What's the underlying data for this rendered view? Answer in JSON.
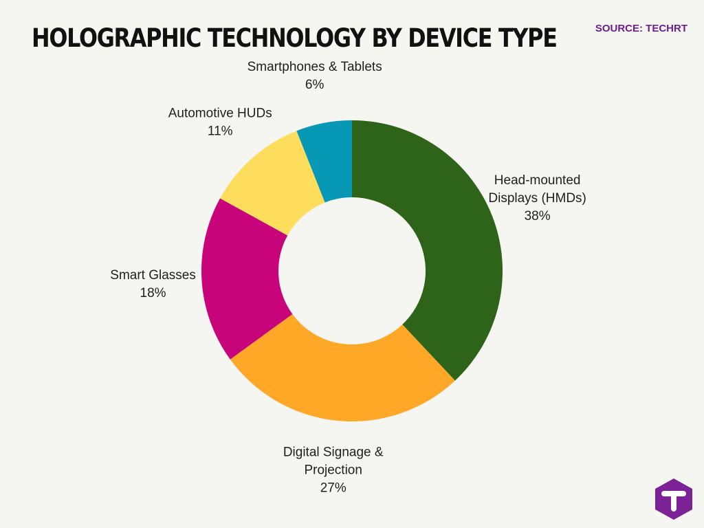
{
  "header": {
    "title": "HOLOGRAPHIC TECHNOLOGY BY DEVICE TYPE",
    "source": "SOURCE: TECHRT"
  },
  "logo": {
    "icon": "techrt-logo-icon",
    "letter": "T",
    "color": "#7b2297"
  },
  "chart_data": {
    "type": "pie",
    "variant": "donut",
    "slices": [
      {
        "label_lines": [
          "Head-mounted",
          "Displays (HMDs)"
        ],
        "value": 38,
        "value_label": "38%",
        "color": "#2e6419"
      },
      {
        "label_lines": [
          "Digital Signage &",
          "Projection"
        ],
        "value": 27,
        "value_label": "27%",
        "color": "#ffa726"
      },
      {
        "label_lines": [
          "Smart Glasses"
        ],
        "value": 18,
        "value_label": "18%",
        "color": "#c8047a"
      },
      {
        "label_lines": [
          "Automotive HUDs"
        ],
        "value": 11,
        "value_label": "11%",
        "color": "#ffdd5c"
      },
      {
        "label_lines": [
          "Smartphones & Tablets"
        ],
        "value": 6,
        "value_label": "6%",
        "color": "#0798b5"
      }
    ],
    "start": "top",
    "direction": "clockwise"
  }
}
